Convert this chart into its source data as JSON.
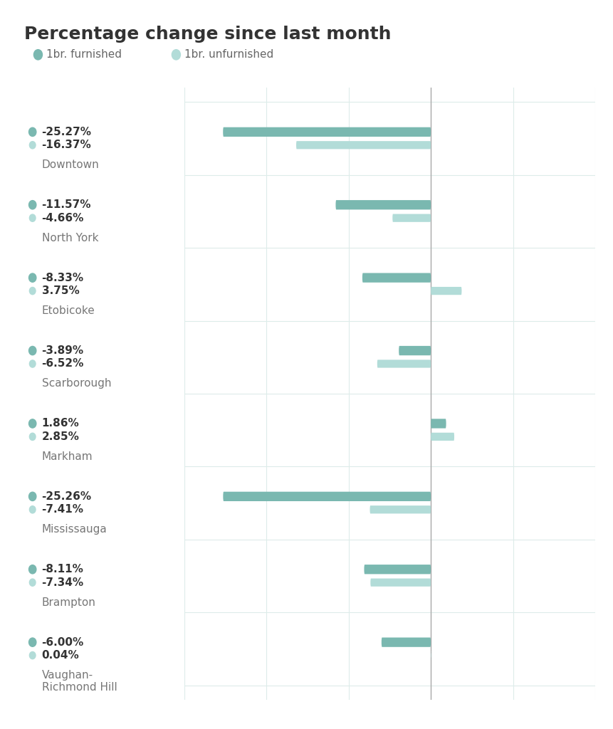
{
  "title": "Percentage change since last month",
  "legend": [
    "1br. furnished",
    "1br. unfurnished"
  ],
  "cities": [
    "Downtown",
    "North York",
    "Etobicoke",
    "Scarborough",
    "Markham",
    "Mississauga",
    "Brampton",
    "Vaughan-\nRichmond Hill"
  ],
  "furnished": [
    -25.27,
    -11.57,
    -8.33,
    -3.89,
    1.86,
    -25.26,
    -8.11,
    -6.0
  ],
  "unfurnished": [
    -16.37,
    -4.66,
    3.75,
    -6.52,
    2.85,
    -7.41,
    -7.34,
    0.04
  ],
  "color_furnished": "#7ab8b0",
  "color_unfurnished": "#b2dcd8",
  "xlim": [
    -30,
    20
  ],
  "background_color": "#ffffff",
  "grid_color": "#ddecea",
  "text_color": "#333333",
  "title_fontsize": 18,
  "legend_fontsize": 11,
  "value_fontsize": 11,
  "city_fontsize": 11
}
